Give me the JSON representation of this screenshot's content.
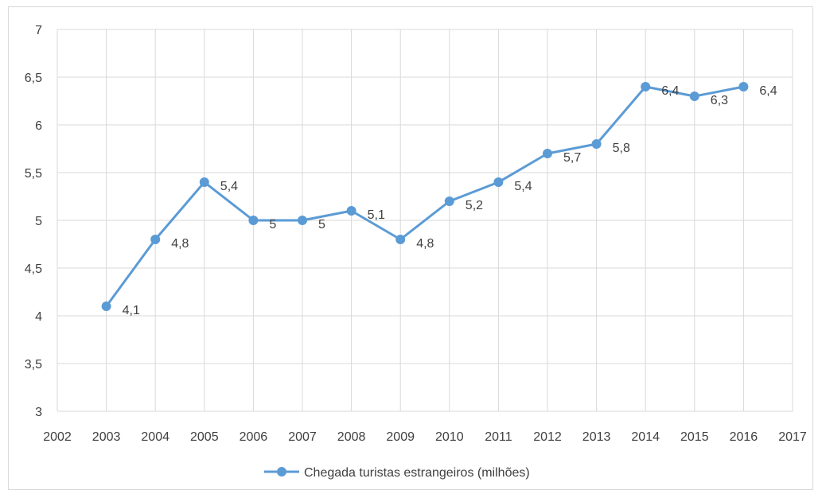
{
  "chart_data": {
    "type": "line",
    "title": "",
    "xlabel": "",
    "ylabel": "",
    "x_ticks": [
      2002,
      2003,
      2004,
      2005,
      2006,
      2007,
      2008,
      2009,
      2010,
      2011,
      2012,
      2013,
      2014,
      2015,
      2016,
      2017
    ],
    "y_ticks": [
      "3",
      "3,5",
      "4",
      "4,5",
      "5",
      "5,5",
      "6",
      "6,5",
      "7"
    ],
    "xlim": [
      2002,
      2017
    ],
    "ylim": [
      3,
      7
    ],
    "grid": true,
    "legend_position": "bottom",
    "series": [
      {
        "name": "Chegada turistas estrangeiros (milhões)",
        "color": "#5b9bd5",
        "x": [
          2003,
          2004,
          2005,
          2006,
          2007,
          2008,
          2009,
          2010,
          2011,
          2012,
          2013,
          2014,
          2015,
          2016
        ],
        "values": [
          4.1,
          4.8,
          5.4,
          5.0,
          5.0,
          5.1,
          4.8,
          5.2,
          5.4,
          5.7,
          5.8,
          6.4,
          6.3,
          6.4
        ],
        "labels": [
          "4,1",
          "4,8",
          "5,4",
          "5",
          "5",
          "5,1",
          "4,8",
          "5,2",
          "5,4",
          "5,7",
          "5,8",
          "6,4",
          "6,3",
          "6,4"
        ]
      }
    ]
  }
}
